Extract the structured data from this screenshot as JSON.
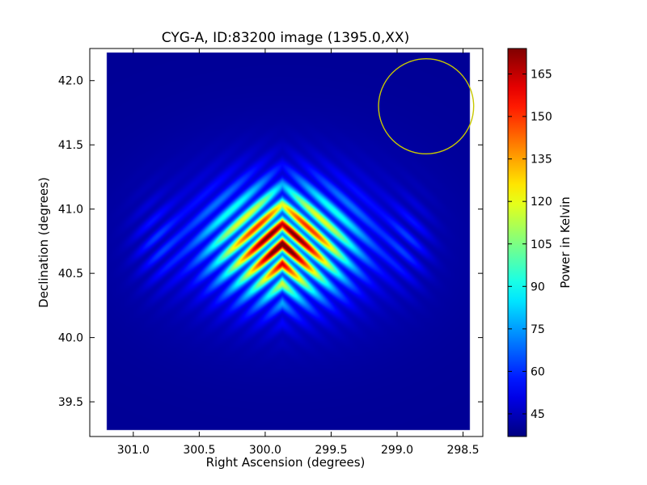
{
  "chart_data": {
    "type": "heatmap",
    "title": "CYG-A, ID:83200 image (1395.0,XX)",
    "xlabel": "Right Ascension (degrees)",
    "ylabel": "Declination (degrees)",
    "xlim": [
      301.33,
      298.35
    ],
    "ylim": [
      39.23,
      42.25
    ],
    "x_axis_inverted": true,
    "xticks": [
      301.0,
      300.5,
      300.0,
      299.5,
      299.0,
      298.5
    ],
    "xtick_labels": [
      "301.0",
      "300.5",
      "300.0",
      "299.5",
      "299.0",
      "298.5"
    ],
    "yticks": [
      39.5,
      40.0,
      40.5,
      41.0,
      41.5,
      42.0
    ],
    "ytick_labels": [
      "39.5",
      "40.0",
      "40.5",
      "41.0",
      "41.5",
      "42.0"
    ],
    "colorbar": {
      "label": "Power in Kelvin",
      "range": [
        37,
        174
      ],
      "ticks": [
        45,
        60,
        75,
        90,
        105,
        120,
        135,
        150,
        165
      ],
      "tick_labels": [
        "45",
        "60",
        "75",
        "90",
        "105",
        "120",
        "135",
        "150",
        "165"
      ],
      "colormap": "jet"
    },
    "source_peak": {
      "ra": 299.87,
      "dec": 40.73,
      "peak_value": 174,
      "background_value": 40,
      "fringe_period_dec": 0.157
    },
    "beam_circle": {
      "ra": 298.78,
      "dec": 41.8,
      "radius_deg": 0.37,
      "color": "#c8c800"
    },
    "grid": false
  }
}
